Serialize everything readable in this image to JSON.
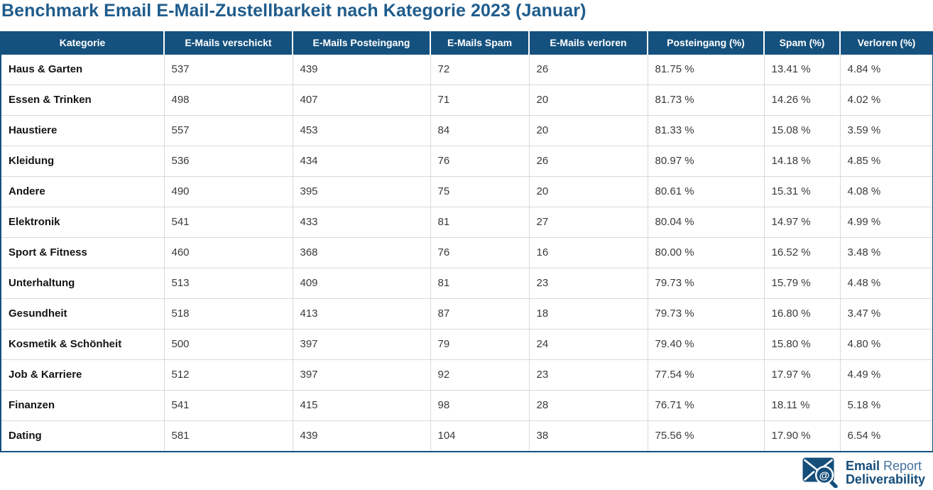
{
  "chart_data": {
    "type": "table",
    "title": "Benchmark Email E-Mail-Zustellbarkeit nach Kategorie 2023 (Januar)",
    "columns": [
      "Kategorie",
      "E-Mails verschickt",
      "E-Mails Posteingang",
      "E-Mails Spam",
      "E-Mails verloren",
      "Posteingang (%)",
      "Spam (%)",
      "Verloren (%)"
    ],
    "rows": [
      [
        "Haus & Garten",
        "537",
        "439",
        "72",
        "26",
        "81.75 %",
        "13.41 %",
        "4.84 %"
      ],
      [
        "Essen & Trinken",
        "498",
        "407",
        "71",
        "20",
        "81.73 %",
        "14.26 %",
        "4.02 %"
      ],
      [
        "Haustiere",
        "557",
        "453",
        "84",
        "20",
        "81.33 %",
        "15.08 %",
        "3.59 %"
      ],
      [
        "Kleidung",
        "536",
        "434",
        "76",
        "26",
        "80.97 %",
        "14.18 %",
        "4.85 %"
      ],
      [
        "Andere",
        "490",
        "395",
        "75",
        "20",
        "80.61 %",
        "15.31 %",
        "4.08 %"
      ],
      [
        "Elektronik",
        "541",
        "433",
        "81",
        "27",
        "80.04 %",
        "14.97 %",
        "4.99 %"
      ],
      [
        "Sport & Fitness",
        "460",
        "368",
        "76",
        "16",
        "80.00 %",
        "16.52 %",
        "3.48 %"
      ],
      [
        "Unterhaltung",
        "513",
        "409",
        "81",
        "23",
        "79.73 %",
        "15.79 %",
        "4.48 %"
      ],
      [
        "Gesundheit",
        "518",
        "413",
        "87",
        "18",
        "79.73 %",
        "16.80 %",
        "3.47 %"
      ],
      [
        "Kosmetik & Schönheit",
        "500",
        "397",
        "79",
        "24",
        "79.40 %",
        "15.80 %",
        "4.80 %"
      ],
      [
        "Job & Karriere",
        "512",
        "397",
        "92",
        "23",
        "77.54 %",
        "17.97 %",
        "4.49 %"
      ],
      [
        "Finanzen",
        "541",
        "415",
        "98",
        "28",
        "76.71 %",
        "18.11 %",
        "5.18 %"
      ],
      [
        "Dating",
        "581",
        "439",
        "104",
        "38",
        "75.56 %",
        "17.90 %",
        "6.54 %"
      ]
    ],
    "legend_position": "none",
    "grid": "on"
  },
  "logo": {
    "icon": "envelope-magnifier-at-icon",
    "line1_part1": "Email",
    "line1_part2": "Report",
    "line2": "Deliverability"
  },
  "colors": {
    "header_bg": "#15517e",
    "title_text": "#1f5c8c",
    "grid_line": "#d9d9d9",
    "table_border": "#15517e",
    "logo_dark": "#164e7a",
    "logo_light": "#44719f"
  }
}
